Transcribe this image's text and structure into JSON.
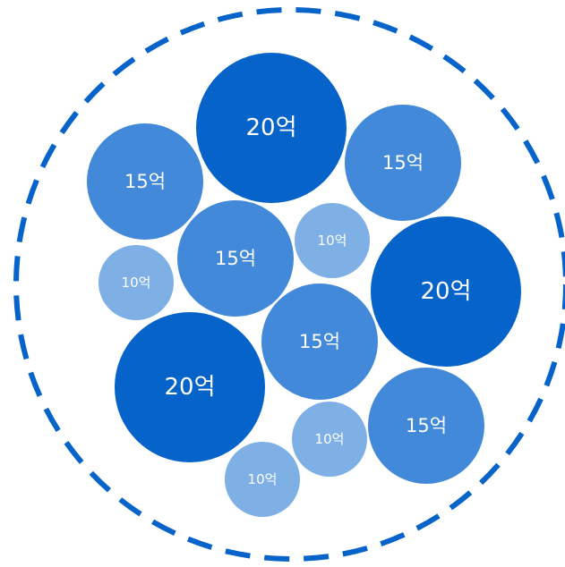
{
  "colors": {
    "large": "#0563c9",
    "medium": "#428ad9",
    "small": "#7eb0e6",
    "outline": "#0563c9",
    "label": "#ffffff"
  },
  "bubbles": [
    {
      "id": "b1",
      "size": "large",
      "label": "20억"
    },
    {
      "id": "b2",
      "size": "medium",
      "label": "15억"
    },
    {
      "id": "b3",
      "size": "medium",
      "label": "15억"
    },
    {
      "id": "b4",
      "size": "medium",
      "label": "15억"
    },
    {
      "id": "b5",
      "size": "small",
      "label": "10억"
    },
    {
      "id": "b6",
      "size": "small",
      "label": "10억"
    },
    {
      "id": "b7",
      "size": "large",
      "label": "20억"
    },
    {
      "id": "b8",
      "size": "medium",
      "label": "15억"
    },
    {
      "id": "b9",
      "size": "large",
      "label": "20억"
    },
    {
      "id": "b10",
      "size": "small",
      "label": "10억"
    },
    {
      "id": "b11",
      "size": "medium",
      "label": "15억"
    },
    {
      "id": "b12",
      "size": "small",
      "label": "10억"
    }
  ]
}
